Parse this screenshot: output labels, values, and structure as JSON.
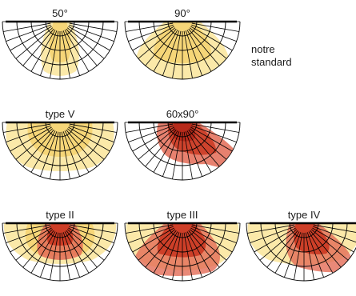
{
  "colors": {
    "yellow": "#f6d678",
    "yellow_light": "#fbe9a9",
    "red": "#e36b56",
    "red_dark": "#c8331d",
    "grid": "#000000"
  },
  "note": {
    "line1": "notre",
    "line2": "standard"
  },
  "diagrams": [
    {
      "label": "50°",
      "kind": "narrow"
    },
    {
      "label": "90°",
      "kind": "wide90"
    },
    {
      "label": "type V",
      "kind": "type5"
    },
    {
      "label": "60x90°",
      "kind": "red6090"
    },
    {
      "label": "type II",
      "kind": "type2"
    },
    {
      "label": "type III",
      "kind": "type3"
    },
    {
      "label": "type IV",
      "kind": "type4"
    }
  ]
}
